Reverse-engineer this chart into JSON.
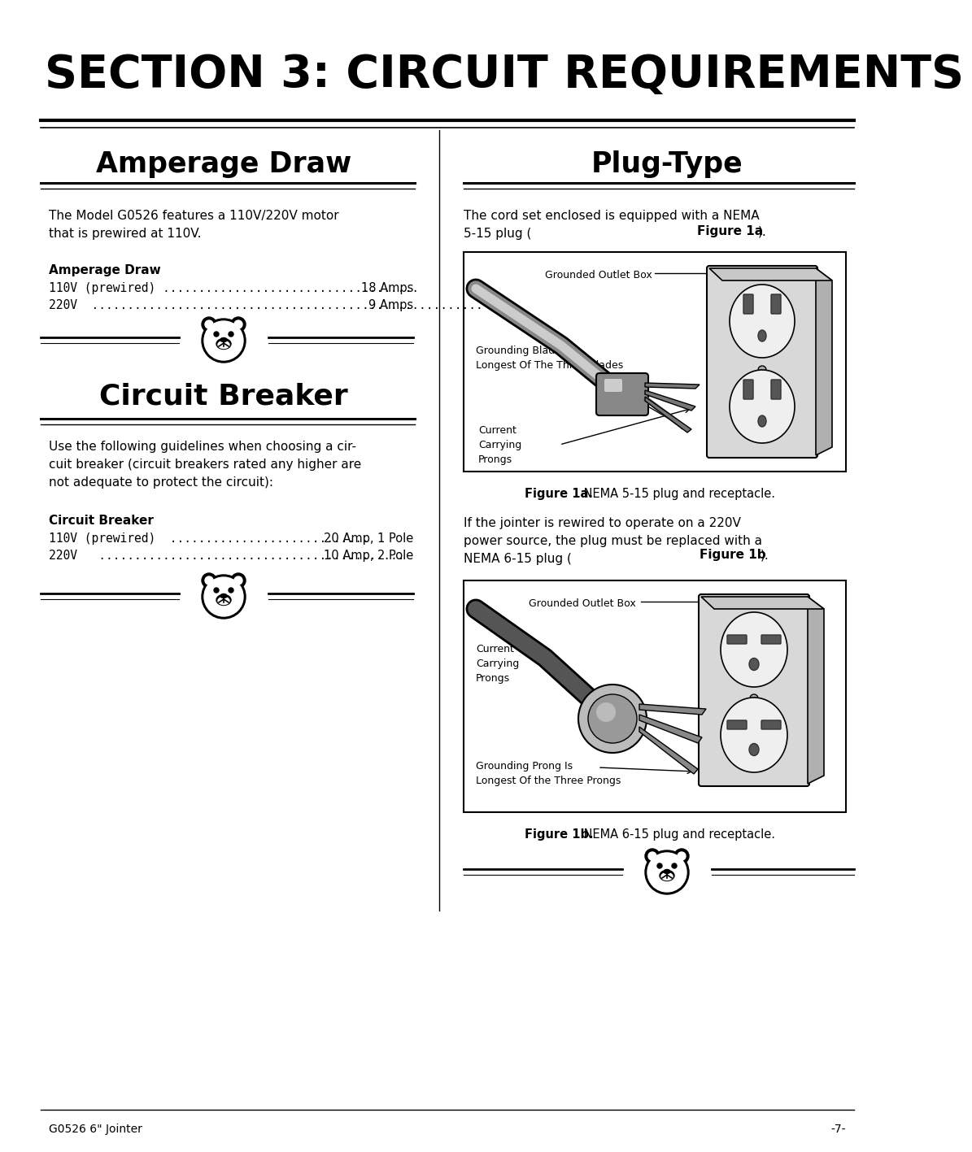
{
  "title": "SECTION 3: CIRCUIT REQUIREMENTS",
  "left_heading": "Amperage Draw",
  "right_heading": "Plug-Type",
  "left_sub_heading": "Circuit Breaker",
  "bg_color": "#ffffff",
  "text_color": "#000000",
  "amperage_draw_label": "Amperage Draw",
  "circuit_breaker_label": "Circuit Breaker",
  "fig1a_caption_bold": "Figure 1a.",
  "fig1a_caption": " NEMA 5-15 plug and receptacle.",
  "fig1b_caption_bold": "Figure 1b.",
  "fig1b_caption": " NEMA 6-15 plug and receptacle.",
  "footer_left": "G0526 6\" Jointer",
  "footer_right": "-7-"
}
